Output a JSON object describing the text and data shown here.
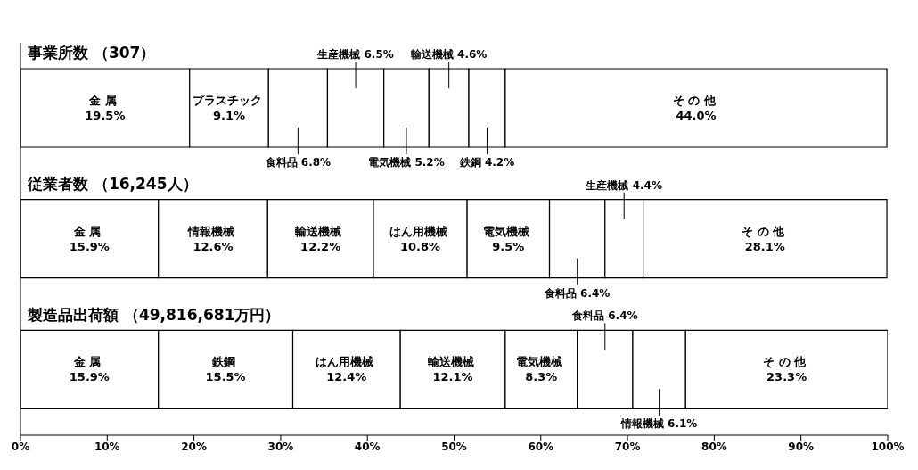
{
  "chart_data": {
    "type": "bar",
    "orientation": "horizontal",
    "stacked": true,
    "categories": [
      "事業所数 （307）",
      "従業者数 （16,245人）",
      "製造品出荷額 （49,816,681万円）"
    ],
    "xlim": [
      0,
      100
    ],
    "xticks": [
      {
        "value": 0,
        "label": "0%"
      },
      {
        "value": 10,
        "label": "10%"
      },
      {
        "value": 20,
        "label": "20%"
      },
      {
        "value": 30,
        "label": "30%"
      },
      {
        "value": 40,
        "label": "40%"
      },
      {
        "value": 50,
        "label": "50%"
      },
      {
        "value": 60,
        "label": "60%"
      },
      {
        "value": 70,
        "label": "70%"
      },
      {
        "value": 80,
        "label": "80%"
      },
      {
        "value": 90,
        "label": "90%"
      },
      {
        "value": 100,
        "label": "100%"
      }
    ],
    "legend": false,
    "series": [
      {
        "color": "#ffffff",
        "values": [
          19.5,
          15.9,
          15.9
        ],
        "value_labels": [
          "金 属 19.5%",
          "金 属 15.9%",
          "金 属 15.9%"
        ]
      },
      {
        "color": "#ffffff",
        "values": [
          9.1,
          12.6,
          15.5
        ],
        "value_labels": [
          "プラスチック 9.1%",
          "情報機械 12.6%",
          "鉄鋼 15.5%"
        ]
      },
      {
        "color": "#ffffff",
        "values": [
          6.8,
          12.2,
          12.4
        ],
        "value_labels": [
          "食料品 6.8%",
          "輸送機械 12.2%",
          "はん用機械 12.4%"
        ]
      },
      {
        "color": "#ffffff",
        "values": [
          6.5,
          10.8,
          12.1
        ],
        "value_labels": [
          "生産機械 6.5%",
          "はん用機械 10.8%",
          "輸送機械 12.1%"
        ]
      },
      {
        "color": "#ffffff",
        "values": [
          5.2,
          9.5,
          8.3
        ],
        "value_labels": [
          "電気機械 5.2%",
          "電気機械 9.5%",
          "電気機械 8.3%"
        ]
      },
      {
        "color": "#ffffff",
        "values": [
          4.6,
          6.4,
          6.4
        ],
        "value_labels": [
          "輸送機械 4.6%",
          "食料品 6.4%",
          "食料品 6.4%"
        ]
      },
      {
        "color": "#ffffff",
        "values": [
          4.2,
          4.4,
          6.1
        ],
        "value_labels": [
          "鉄鋼 4.2%",
          "生産機械 4.4%",
          "情報機械 6.1%"
        ]
      },
      {
        "color": "#ffffff",
        "values": [
          44.0,
          28.1,
          23.3
        ],
        "value_labels": [
          "そ の 他 44.0%",
          "そ の 他 28.1%",
          "そ の 他 23.3%"
        ]
      }
    ]
  }
}
